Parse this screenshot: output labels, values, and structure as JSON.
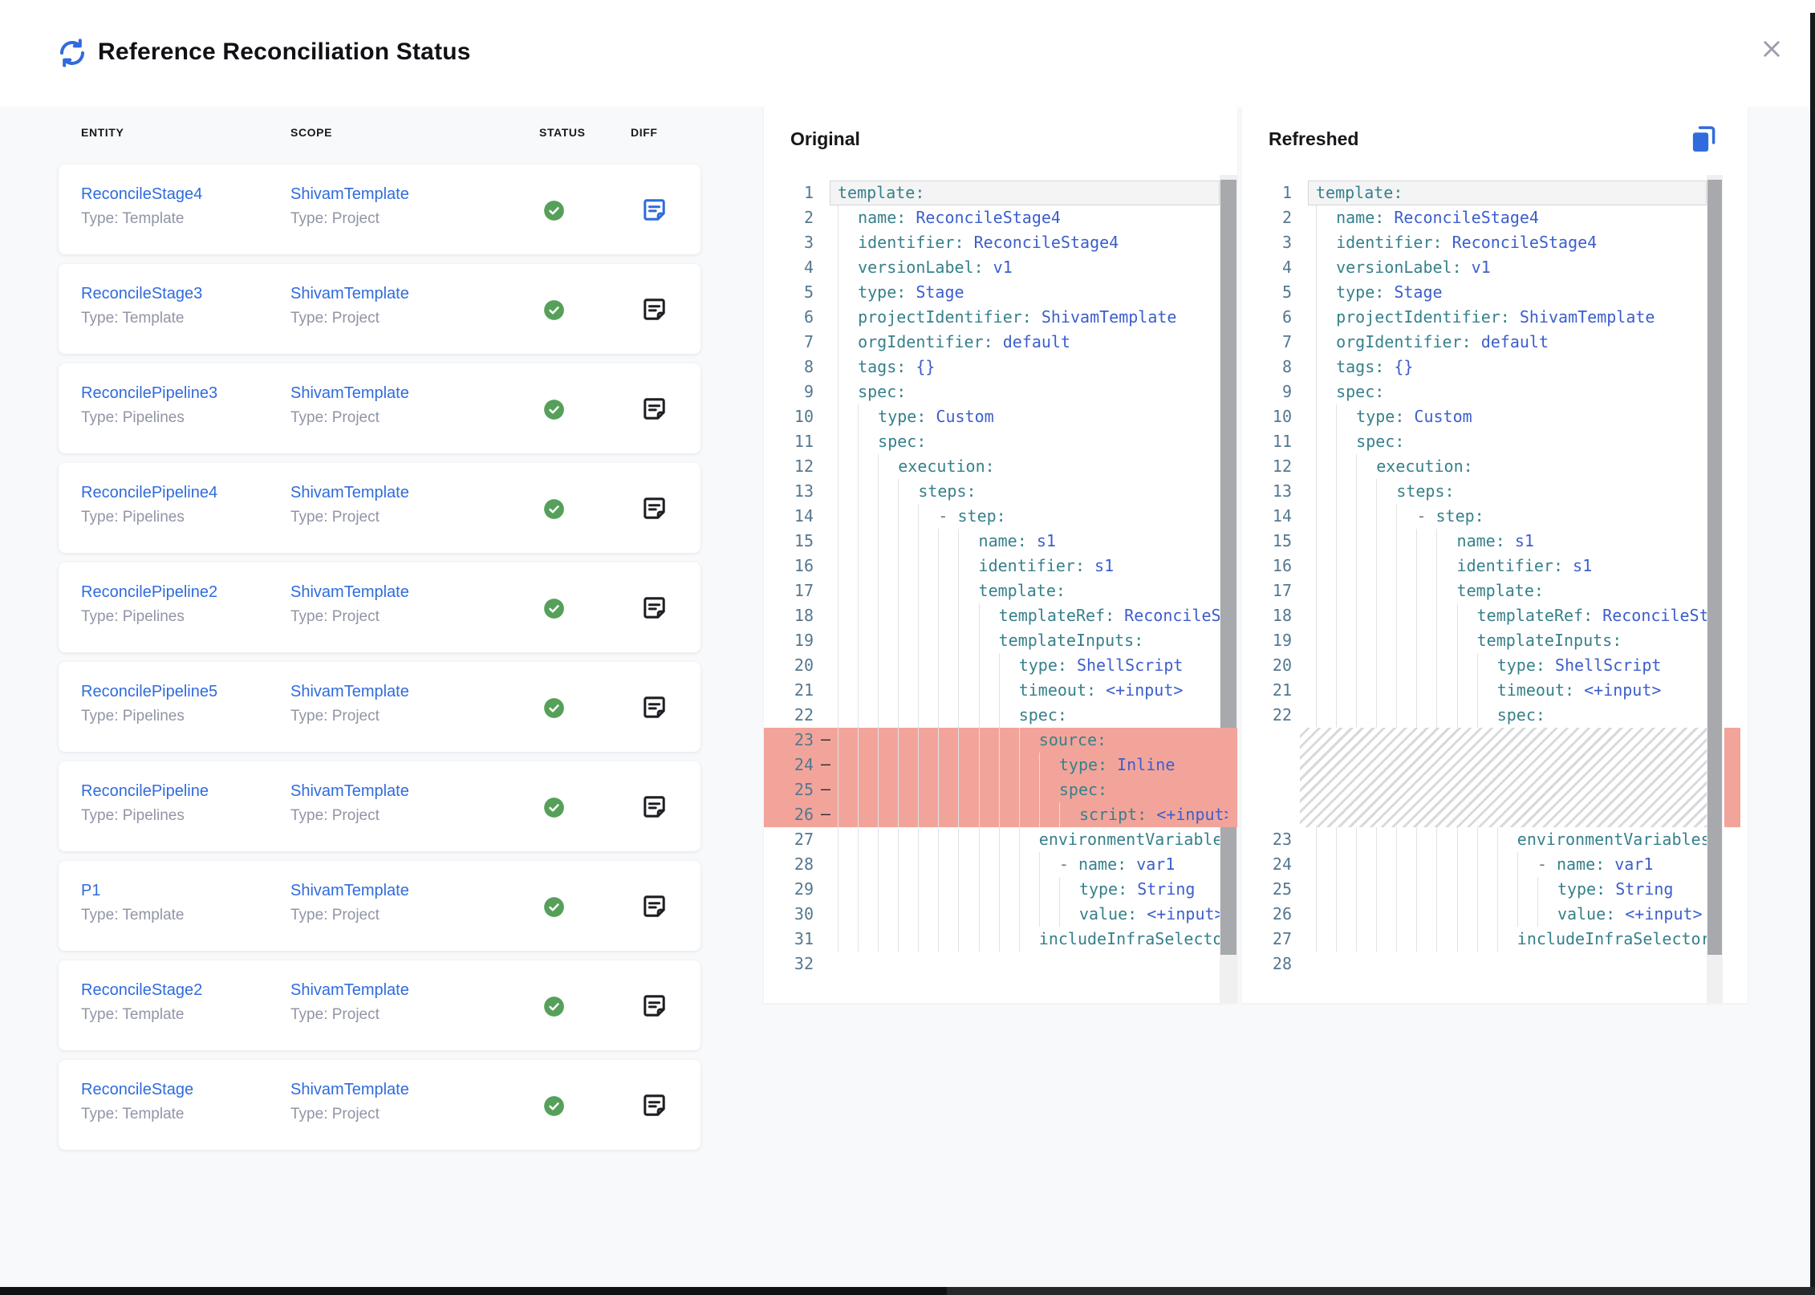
{
  "header": {
    "title": "Reference Reconciliation Status"
  },
  "colors": {
    "accent_blue": "#2F6BDD",
    "success_green": "#56A05A",
    "removed_bg": "#F2A49B",
    "yaml_key": "#36808B",
    "yaml_value": "#3C5ECC",
    "line_number": "#54788F",
    "secondary_text": "#9195A5"
  },
  "table": {
    "headers": {
      "entity": "ENTITY",
      "scope": "SCOPE",
      "status": "STATUS",
      "diff": "DIFF"
    },
    "rows": [
      {
        "entity": "ReconcileStage4",
        "entity_type": "Type: Template",
        "scope": "ShivamTemplate",
        "scope_type": "Type: Project",
        "status": "success",
        "diff_active": true
      },
      {
        "entity": "ReconcileStage3",
        "entity_type": "Type: Template",
        "scope": "ShivamTemplate",
        "scope_type": "Type: Project",
        "status": "success",
        "diff_active": false
      },
      {
        "entity": "ReconcilePipeline3",
        "entity_type": "Type: Pipelines",
        "scope": "ShivamTemplate",
        "scope_type": "Type: Project",
        "status": "success",
        "diff_active": false
      },
      {
        "entity": "ReconcilePipeline4",
        "entity_type": "Type: Pipelines",
        "scope": "ShivamTemplate",
        "scope_type": "Type: Project",
        "status": "success",
        "diff_active": false
      },
      {
        "entity": "ReconcilePipeline2",
        "entity_type": "Type: Pipelines",
        "scope": "ShivamTemplate",
        "scope_type": "Type: Project",
        "status": "success",
        "diff_active": false
      },
      {
        "entity": "ReconcilePipeline5",
        "entity_type": "Type: Pipelines",
        "scope": "ShivamTemplate",
        "scope_type": "Type: Project",
        "status": "success",
        "diff_active": false
      },
      {
        "entity": "ReconcilePipeline",
        "entity_type": "Type: Pipelines",
        "scope": "ShivamTemplate",
        "scope_type": "Type: Project",
        "status": "success",
        "diff_active": false
      },
      {
        "entity": "P1",
        "entity_type": "Type: Template",
        "scope": "ShivamTemplate",
        "scope_type": "Type: Project",
        "status": "success",
        "diff_active": false
      },
      {
        "entity": "ReconcileStage2",
        "entity_type": "Type: Template",
        "scope": "ShivamTemplate",
        "scope_type": "Type: Project",
        "status": "success",
        "diff_active": false
      },
      {
        "entity": "ReconcileStage",
        "entity_type": "Type: Template",
        "scope": "ShivamTemplate",
        "scope_type": "Type: Project",
        "status": "success",
        "diff_active": false
      }
    ]
  },
  "panels": {
    "original": {
      "label": "Original",
      "lines": [
        {
          "t": "template:",
          "hl": true
        },
        {
          "t": "  name: ReconcileStage4"
        },
        {
          "t": "  identifier: ReconcileStage4"
        },
        {
          "t": "  versionLabel: v1"
        },
        {
          "t": "  type: Stage"
        },
        {
          "t": "  projectIdentifier: ShivamTemplate"
        },
        {
          "t": "  orgIdentifier: default"
        },
        {
          "t": "  tags: {}"
        },
        {
          "t": "  spec:"
        },
        {
          "t": "    type: Custom"
        },
        {
          "t": "    spec:"
        },
        {
          "t": "      execution:"
        },
        {
          "t": "        steps:"
        },
        {
          "t": "          - step:"
        },
        {
          "t": "              name: s1"
        },
        {
          "t": "              identifier: s1"
        },
        {
          "t": "              template:"
        },
        {
          "t": "                templateRef: ReconcileStep"
        },
        {
          "t": "                templateInputs:"
        },
        {
          "t": "                  type: ShellScript"
        },
        {
          "t": "                  timeout: <+input>"
        },
        {
          "t": "                  spec:"
        },
        {
          "t": "                    source:",
          "removed": true
        },
        {
          "t": "                      type: Inline",
          "removed": true
        },
        {
          "t": "                      spec:",
          "removed": true
        },
        {
          "t": "                        script: <+input>",
          "removed": true
        },
        {
          "t": "                    environmentVariables:"
        },
        {
          "t": "                      - name: var1"
        },
        {
          "t": "                        type: String"
        },
        {
          "t": "                        value: <+input>"
        },
        {
          "t": "                    includeInfraSelectors:"
        },
        {
          "t": ""
        }
      ]
    },
    "refreshed": {
      "label": "Refreshed",
      "lines": [
        {
          "t": "template:",
          "hl": true
        },
        {
          "t": "  name: ReconcileStage4"
        },
        {
          "t": "  identifier: ReconcileStage4"
        },
        {
          "t": "  versionLabel: v1"
        },
        {
          "t": "  type: Stage"
        },
        {
          "t": "  projectIdentifier: ShivamTemplate"
        },
        {
          "t": "  orgIdentifier: default"
        },
        {
          "t": "  tags: {}"
        },
        {
          "t": "  spec:"
        },
        {
          "t": "    type: Custom"
        },
        {
          "t": "    spec:"
        },
        {
          "t": "      execution:"
        },
        {
          "t": "        steps:"
        },
        {
          "t": "          - step:"
        },
        {
          "t": "              name: s1"
        },
        {
          "t": "              identifier: s1"
        },
        {
          "t": "              template:"
        },
        {
          "t": "                templateRef: ReconcileStep"
        },
        {
          "t": "                templateInputs:"
        },
        {
          "t": "                  type: ShellScript"
        },
        {
          "t": "                  timeout: <+input>"
        },
        {
          "t": "                  spec:"
        },
        {
          "hatch": true,
          "rows": 4
        },
        {
          "t": "                    environmentVariables:"
        },
        {
          "t": "                      - name: var1"
        },
        {
          "t": "                        type: String"
        },
        {
          "t": "                        value: <+input>"
        },
        {
          "t": "                    includeInfraSelectors:"
        },
        {
          "t": ""
        }
      ]
    }
  }
}
